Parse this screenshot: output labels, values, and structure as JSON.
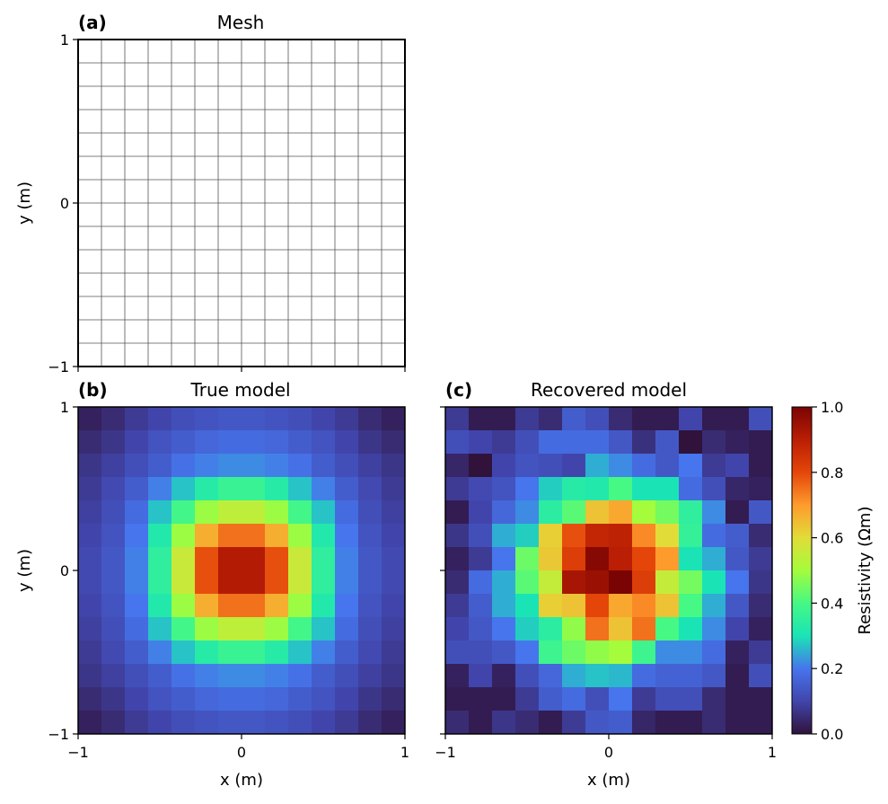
{
  "chart_data": [
    {
      "type": "heatmap",
      "panel_label": "(a)",
      "title": "Mesh",
      "xlabel": "",
      "ylabel": "y (m)",
      "xlim": [
        -1,
        1
      ],
      "ylim": [
        -1,
        1
      ],
      "xticks": [
        -1,
        0,
        1
      ],
      "yticks": [
        -1,
        0,
        1
      ],
      "show_xtick_labels": false,
      "show_ytick_labels": true,
      "grid_cells": [
        14,
        14
      ]
    },
    {
      "type": "heatmap",
      "panel_label": "(b)",
      "title": "True model",
      "xlabel": "x (m)",
      "ylabel": "y (m)",
      "xlim": [
        -1,
        1
      ],
      "ylim": [
        -1,
        1
      ],
      "xticks": [
        -1,
        0,
        1
      ],
      "yticks": [
        -1,
        0,
        1
      ],
      "show_xtick_labels": true,
      "show_ytick_labels": true,
      "rows_top_to_bottom": [
        [
          0.03,
          0.05,
          0.08,
          0.1,
          0.12,
          0.13,
          0.14,
          0.14,
          0.13,
          0.12,
          0.1,
          0.08,
          0.05,
          0.03
        ],
        [
          0.05,
          0.07,
          0.1,
          0.13,
          0.15,
          0.17,
          0.18,
          0.18,
          0.17,
          0.15,
          0.13,
          0.1,
          0.07,
          0.05
        ],
        [
          0.07,
          0.09,
          0.12,
          0.15,
          0.19,
          0.21,
          0.22,
          0.22,
          0.21,
          0.19,
          0.15,
          0.12,
          0.09,
          0.07
        ],
        [
          0.08,
          0.11,
          0.15,
          0.21,
          0.27,
          0.33,
          0.37,
          0.37,
          0.33,
          0.27,
          0.21,
          0.15,
          0.11,
          0.08
        ],
        [
          0.09,
          0.12,
          0.18,
          0.27,
          0.39,
          0.49,
          0.54,
          0.54,
          0.49,
          0.39,
          0.27,
          0.18,
          0.12,
          0.09
        ],
        [
          0.1,
          0.13,
          0.2,
          0.32,
          0.49,
          0.67,
          0.75,
          0.75,
          0.67,
          0.49,
          0.32,
          0.2,
          0.13,
          0.1
        ],
        [
          0.11,
          0.14,
          0.21,
          0.35,
          0.56,
          0.79,
          0.91,
          0.91,
          0.79,
          0.56,
          0.35,
          0.21,
          0.14,
          0.11
        ],
        [
          0.11,
          0.14,
          0.21,
          0.35,
          0.56,
          0.79,
          0.91,
          0.91,
          0.79,
          0.56,
          0.35,
          0.21,
          0.14,
          0.11
        ],
        [
          0.1,
          0.13,
          0.2,
          0.32,
          0.49,
          0.67,
          0.75,
          0.75,
          0.67,
          0.49,
          0.32,
          0.2,
          0.13,
          0.1
        ],
        [
          0.09,
          0.12,
          0.18,
          0.27,
          0.39,
          0.49,
          0.54,
          0.54,
          0.49,
          0.39,
          0.27,
          0.18,
          0.12,
          0.09
        ],
        [
          0.08,
          0.11,
          0.15,
          0.21,
          0.27,
          0.33,
          0.37,
          0.37,
          0.33,
          0.27,
          0.21,
          0.15,
          0.11,
          0.08
        ],
        [
          0.07,
          0.09,
          0.12,
          0.15,
          0.19,
          0.21,
          0.22,
          0.22,
          0.21,
          0.19,
          0.15,
          0.12,
          0.09,
          0.07
        ],
        [
          0.05,
          0.07,
          0.1,
          0.13,
          0.15,
          0.17,
          0.18,
          0.18,
          0.17,
          0.15,
          0.13,
          0.1,
          0.07,
          0.05
        ],
        [
          0.03,
          0.05,
          0.08,
          0.1,
          0.12,
          0.13,
          0.14,
          0.14,
          0.13,
          0.12,
          0.1,
          0.08,
          0.05,
          0.03
        ]
      ]
    },
    {
      "type": "heatmap",
      "panel_label": "(c)",
      "title": "Recovered model",
      "xlabel": "x (m)",
      "ylabel": "",
      "xlim": [
        -1,
        1
      ],
      "ylim": [
        -1,
        1
      ],
      "xticks": [
        -1,
        0,
        1
      ],
      "yticks": [
        -1,
        0,
        1
      ],
      "show_xtick_labels": true,
      "show_ytick_labels": false,
      "rows_top_to_bottom": [
        [
          0.08,
          0.02,
          0.02,
          0.08,
          0.05,
          0.15,
          0.12,
          0.05,
          0.02,
          0.02,
          0.1,
          0.02,
          0.02,
          0.12
        ],
        [
          0.12,
          0.1,
          0.08,
          0.12,
          0.18,
          0.18,
          0.18,
          0.14,
          0.06,
          0.14,
          0.0,
          0.05,
          0.03,
          0.02
        ],
        [
          0.04,
          0.0,
          0.1,
          0.13,
          0.12,
          0.1,
          0.25,
          0.22,
          0.18,
          0.14,
          0.2,
          0.08,
          0.1,
          0.02
        ],
        [
          0.08,
          0.11,
          0.13,
          0.2,
          0.28,
          0.33,
          0.32,
          0.4,
          0.3,
          0.3,
          0.18,
          0.12,
          0.04,
          0.03
        ],
        [
          0.02,
          0.1,
          0.17,
          0.22,
          0.34,
          0.42,
          0.64,
          0.68,
          0.5,
          0.45,
          0.35,
          0.22,
          0.02,
          0.14
        ],
        [
          0.07,
          0.12,
          0.25,
          0.28,
          0.62,
          0.79,
          0.88,
          0.89,
          0.72,
          0.6,
          0.36,
          0.18,
          0.15,
          0.05
        ],
        [
          0.03,
          0.08,
          0.2,
          0.44,
          0.63,
          0.82,
          0.98,
          0.9,
          0.8,
          0.7,
          0.3,
          0.25,
          0.14,
          0.08
        ],
        [
          0.05,
          0.18,
          0.25,
          0.42,
          0.55,
          0.93,
          0.95,
          1.0,
          0.82,
          0.55,
          0.45,
          0.3,
          0.2,
          0.07
        ],
        [
          0.08,
          0.15,
          0.25,
          0.3,
          0.62,
          0.64,
          0.8,
          0.68,
          0.72,
          0.64,
          0.4,
          0.25,
          0.14,
          0.05
        ],
        [
          0.1,
          0.14,
          0.2,
          0.28,
          0.34,
          0.48,
          0.75,
          0.64,
          0.75,
          0.4,
          0.3,
          0.22,
          0.1,
          0.03
        ],
        [
          0.12,
          0.12,
          0.14,
          0.2,
          0.38,
          0.44,
          0.48,
          0.5,
          0.38,
          0.22,
          0.22,
          0.18,
          0.03,
          0.08
        ],
        [
          0.03,
          0.1,
          0.03,
          0.12,
          0.17,
          0.25,
          0.27,
          0.26,
          0.18,
          0.16,
          0.16,
          0.14,
          0.02,
          0.12
        ],
        [
          0.02,
          0.02,
          0.02,
          0.08,
          0.15,
          0.18,
          0.12,
          0.2,
          0.08,
          0.12,
          0.12,
          0.05,
          0.02,
          0.02
        ],
        [
          0.05,
          0.02,
          0.07,
          0.05,
          0.02,
          0.08,
          0.14,
          0.15,
          0.04,
          0.02,
          0.02,
          0.05,
          0.02,
          0.02
        ]
      ]
    }
  ],
  "colorbar": {
    "label": "Resistivity (Ωm)",
    "min": 0.0,
    "max": 1.0,
    "ticks": [
      "0.0",
      "0.2",
      "0.4",
      "0.6",
      "0.8",
      "1.0"
    ],
    "colormap": "turbo"
  }
}
